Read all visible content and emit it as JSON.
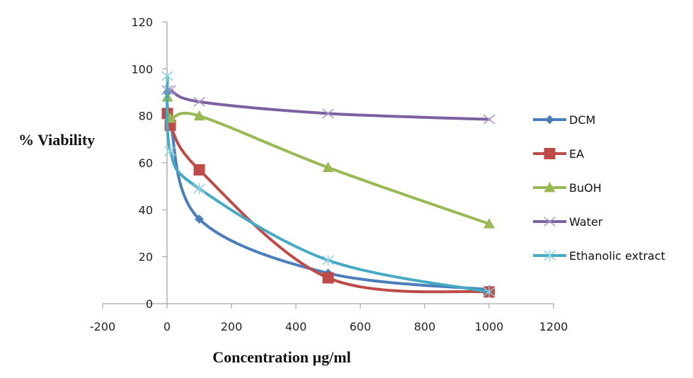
{
  "chart_data": {
    "type": "line",
    "title": "",
    "xlabel": "Concentration µg/ml",
    "ylabel": "% Viability",
    "xlim": [
      -200,
      1200
    ],
    "ylim": [
      0,
      120
    ],
    "xticks": [
      -200,
      0,
      200,
      400,
      600,
      800,
      1000,
      1200
    ],
    "yticks": [
      0,
      20,
      40,
      60,
      80,
      100,
      120
    ],
    "grid": false,
    "legend_position": "right",
    "smooth": true,
    "series": [
      {
        "name": "DCM",
        "color": "#4a7ebb",
        "marker": "diamond",
        "x": [
          1,
          10,
          100,
          500,
          1000
        ],
        "y": [
          90,
          78,
          36,
          13,
          6
        ]
      },
      {
        "name": "EA",
        "color": "#be4b48",
        "marker": "square",
        "x": [
          1,
          10,
          100,
          500,
          1000
        ],
        "y": [
          81,
          76,
          57,
          11,
          5
        ]
      },
      {
        "name": "BuOH",
        "color": "#98b954",
        "marker": "triangle",
        "x": [
          1,
          10,
          100,
          500,
          1000
        ],
        "y": [
          88,
          79,
          80,
          58,
          34
        ]
      },
      {
        "name": "Water",
        "color": "#7d60a0",
        "marker": "x",
        "x": [
          1,
          10,
          100,
          500,
          1000
        ],
        "y": [
          91,
          91,
          86,
          81,
          78.5
        ]
      },
      {
        "name": "Ethanolic extract",
        "color": "#46aac5",
        "marker": "star",
        "x": [
          1,
          10,
          100,
          500,
          1000
        ],
        "y": [
          97,
          65,
          49,
          18.5,
          5
        ]
      }
    ]
  }
}
